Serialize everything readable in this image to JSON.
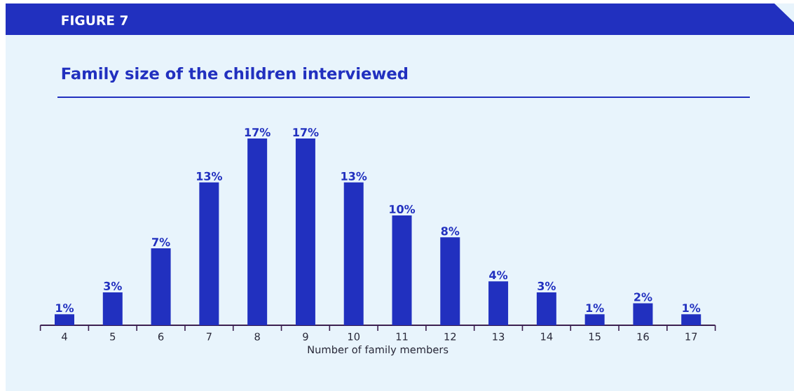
{
  "chart_data": {
    "type": "bar",
    "title": "Family size of the children interviewed",
    "annotations": [
      "FIGURE 7"
    ],
    "xlabel": "Number of family members",
    "categories": [
      "4",
      "5",
      "6",
      "7",
      "8",
      "9",
      "10",
      "11",
      "12",
      "13",
      "14",
      "15",
      "16",
      "17"
    ],
    "values": [
      1,
      3,
      7,
      13,
      17,
      17,
      13,
      10,
      8,
      4,
      3,
      1,
      2,
      1
    ],
    "value_labels": [
      "1%",
      "3%",
      "7%",
      "13%",
      "17%",
      "17%",
      "13%",
      "10%",
      "8%",
      "4%",
      "3%",
      "1%",
      "2%",
      "1%"
    ],
    "color": "#2130bf"
  }
}
